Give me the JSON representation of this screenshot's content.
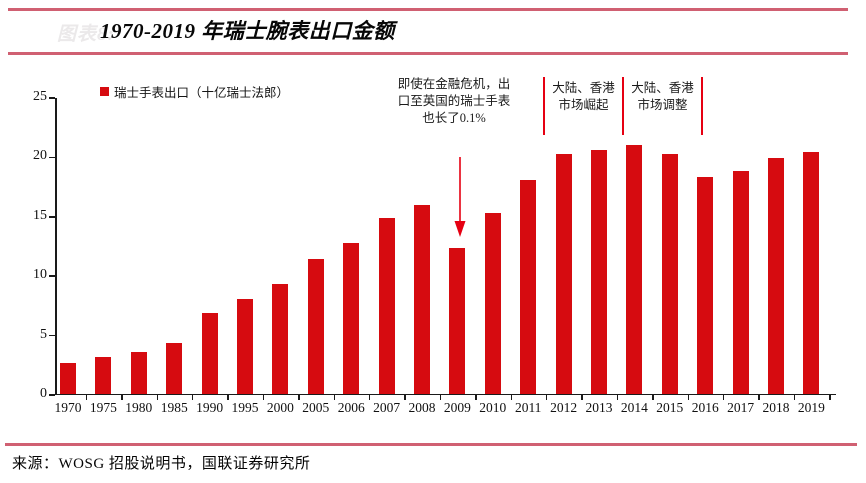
{
  "header": {
    "faint_label": "图表8:",
    "title": "1970-2019 年瑞士腕表出口金额"
  },
  "legend": {
    "label": "瑞士手表出口（十亿瑞士法郎）"
  },
  "annotations": {
    "crisis_note": {
      "lines": [
        "即使在金融危机，出",
        "口至英国的瑞士手表",
        "也长了0.1%"
      ]
    },
    "rise_note": {
      "lines": [
        "大陆、香港",
        "市场崛起"
      ]
    },
    "adjust_note": {
      "lines": [
        "大陆、香港",
        "市场调整"
      ]
    }
  },
  "source": "来源：WOSG 招股说明书，国联证券研究所",
  "colors": {
    "bar": "#d60b10",
    "accent_rule": "#d06072",
    "annotation_red": "#e60012",
    "axis": "#1a1a1a"
  },
  "chart_data": {
    "type": "bar",
    "title": "1970-2019 年瑞士腕表出口金额",
    "legend": "瑞士手表出口（十亿瑞士法郎）",
    "xlabel": "",
    "ylabel": "十亿瑞士法郎",
    "ylim": [
      0,
      25
    ],
    "yticks": [
      0,
      5,
      10,
      15,
      20,
      25
    ],
    "grid": false,
    "legend_position": "top-left",
    "categories": [
      "1970",
      "1975",
      "1980",
      "1985",
      "1990",
      "1995",
      "2000",
      "2005",
      "2006",
      "2007",
      "2008",
      "2009",
      "2010",
      "2011",
      "2012",
      "2013",
      "2014",
      "2015",
      "2016",
      "2017",
      "2018",
      "2019"
    ],
    "values": [
      2.6,
      3.1,
      3.5,
      4.3,
      6.8,
      8.0,
      9.3,
      11.4,
      12.7,
      14.8,
      15.9,
      12.3,
      15.2,
      18.0,
      20.2,
      20.5,
      21.0,
      20.2,
      18.3,
      18.8,
      19.9,
      20.4
    ],
    "annotations": [
      {
        "text": "即使在金融危机，出口至英国的瑞士手表也长了0.1%",
        "points_to": "2009"
      },
      {
        "text": "大陆、香港市场崛起",
        "span": [
          "2012",
          "2013"
        ]
      },
      {
        "text": "大陆、香港市场调整",
        "span": [
          "2014",
          "2015"
        ]
      }
    ]
  }
}
